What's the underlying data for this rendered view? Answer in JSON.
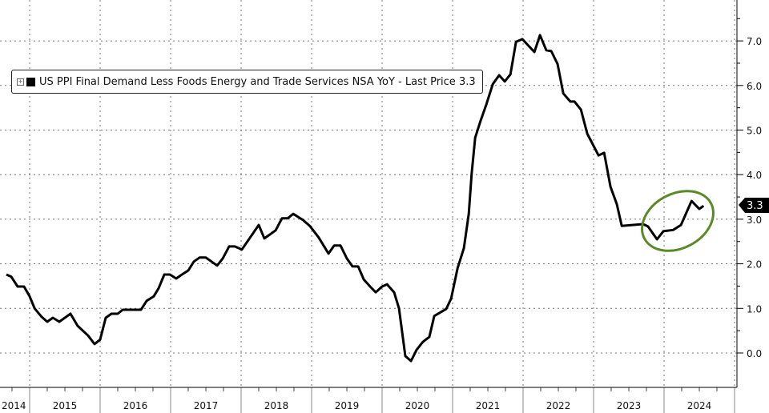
{
  "chart_data": {
    "type": "line",
    "title": "",
    "legend": {
      "placement": "top-left",
      "entries": [
        "US PPI Final Demand Less Foods Energy and Trade Services NSA YoY - Last Price 3.3"
      ]
    },
    "last_price_label": "3.3",
    "xlabel": "",
    "ylabel": "",
    "x_tick_labels": [
      "2014",
      "2015",
      "2016",
      "2017",
      "2018",
      "2019",
      "2020",
      "2021",
      "2022",
      "2023",
      "2024"
    ],
    "y_tick_labels": [
      "0.0",
      "1.0",
      "2.0",
      "3.0",
      "4.0",
      "5.0",
      "6.0",
      "7.0"
    ],
    "ylim": [
      -0.4,
      7.9
    ],
    "xlim": [
      2014.58,
      2025.05
    ],
    "y_axis_side": "right",
    "grid": true,
    "annotation": {
      "type": "ellipse",
      "color": "#5a8a28",
      "highlights": "2023-2024 reacceleration"
    },
    "series": [
      {
        "color": "#000000",
        "points": [
          [
            2014.67,
            1.76
          ],
          [
            2014.74,
            1.71
          ],
          [
            2014.83,
            1.49
          ],
          [
            2014.92,
            1.49
          ],
          [
            2015.0,
            1.27
          ],
          [
            2015.07,
            1.0
          ],
          [
            2015.17,
            0.81
          ],
          [
            2015.25,
            0.7
          ],
          [
            2015.33,
            0.79
          ],
          [
            2015.42,
            0.7
          ],
          [
            2015.58,
            0.88
          ],
          [
            2015.68,
            0.61
          ],
          [
            2015.83,
            0.39
          ],
          [
            2015.92,
            0.2
          ],
          [
            2016.0,
            0.3
          ],
          [
            2016.08,
            0.79
          ],
          [
            2016.16,
            0.88
          ],
          [
            2016.25,
            0.88
          ],
          [
            2016.32,
            0.97
          ],
          [
            2016.58,
            0.97
          ],
          [
            2016.66,
            1.17
          ],
          [
            2016.76,
            1.27
          ],
          [
            2016.83,
            1.45
          ],
          [
            2016.91,
            1.76
          ],
          [
            2016.99,
            1.76
          ],
          [
            2017.08,
            1.67
          ],
          [
            2017.16,
            1.76
          ],
          [
            2017.25,
            1.85
          ],
          [
            2017.33,
            2.05
          ],
          [
            2017.41,
            2.14
          ],
          [
            2017.5,
            2.14
          ],
          [
            2017.66,
            1.96
          ],
          [
            2017.74,
            2.12
          ],
          [
            2017.83,
            2.39
          ],
          [
            2017.91,
            2.39
          ],
          [
            2018.01,
            2.32
          ],
          [
            2018.25,
            2.87
          ],
          [
            2018.33,
            2.57
          ],
          [
            2018.49,
            2.75
          ],
          [
            2018.58,
            3.02
          ],
          [
            2018.66,
            3.02
          ],
          [
            2018.74,
            3.12
          ],
          [
            2018.88,
            2.98
          ],
          [
            2018.98,
            2.84
          ],
          [
            2019.1,
            2.59
          ],
          [
            2019.24,
            2.23
          ],
          [
            2019.32,
            2.41
          ],
          [
            2019.41,
            2.41
          ],
          [
            2019.5,
            2.12
          ],
          [
            2019.58,
            1.94
          ],
          [
            2019.66,
            1.94
          ],
          [
            2019.74,
            1.65
          ],
          [
            2019.83,
            1.49
          ],
          [
            2019.91,
            1.36
          ],
          [
            2020.0,
            1.49
          ],
          [
            2020.07,
            1.54
          ],
          [
            2020.17,
            1.36
          ],
          [
            2020.24,
            1.0
          ],
          [
            2020.33,
            -0.07
          ],
          [
            2020.41,
            -0.18
          ],
          [
            2020.49,
            0.07
          ],
          [
            2020.58,
            0.25
          ],
          [
            2020.67,
            0.36
          ],
          [
            2020.74,
            0.83
          ],
          [
            2020.91,
            0.99
          ],
          [
            2020.98,
            1.22
          ],
          [
            2021.07,
            1.9
          ],
          [
            2021.16,
            2.35
          ],
          [
            2021.23,
            3.12
          ],
          [
            2021.27,
            4.02
          ],
          [
            2021.32,
            4.83
          ],
          [
            2021.4,
            5.22
          ],
          [
            2021.48,
            5.58
          ],
          [
            2021.57,
            6.03
          ],
          [
            2021.66,
            6.23
          ],
          [
            2021.74,
            6.09
          ],
          [
            2021.82,
            6.25
          ],
          [
            2021.9,
            6.98
          ],
          [
            2021.99,
            7.04
          ],
          [
            2022.16,
            6.75
          ],
          [
            2022.24,
            7.13
          ],
          [
            2022.33,
            6.79
          ],
          [
            2022.4,
            6.77
          ],
          [
            2022.49,
            6.48
          ],
          [
            2022.57,
            5.82
          ],
          [
            2022.67,
            5.64
          ],
          [
            2022.73,
            5.64
          ],
          [
            2022.82,
            5.46
          ],
          [
            2022.91,
            4.92
          ],
          [
            2023.07,
            4.43
          ],
          [
            2023.15,
            4.49
          ],
          [
            2023.24,
            3.73
          ],
          [
            2023.33,
            3.34
          ],
          [
            2023.4,
            2.85
          ],
          [
            2023.7,
            2.89
          ],
          [
            2023.77,
            2.84
          ],
          [
            2023.9,
            2.55
          ],
          [
            2023.99,
            2.73
          ],
          [
            2024.13,
            2.76
          ],
          [
            2024.24,
            2.87
          ],
          [
            2024.39,
            3.41
          ],
          [
            2024.5,
            3.23
          ],
          [
            2024.56,
            3.3
          ]
        ]
      }
    ]
  }
}
